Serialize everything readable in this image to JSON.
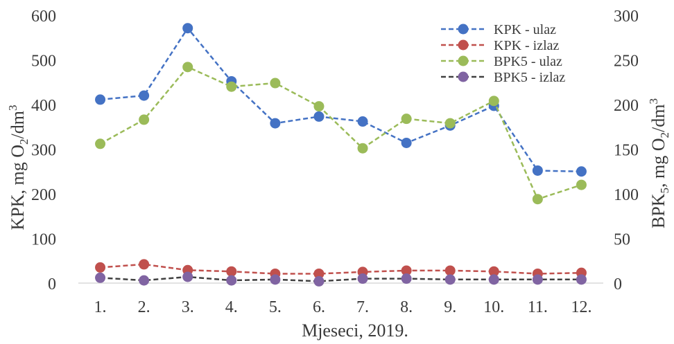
{
  "chart_data": {
    "type": "line",
    "xlabel": "Mjeseci, 2019.",
    "ylabel_left": "KPK, mg O",
    "ylabel_left_sub": "2",
    "ylabel_left_tail": "/dm",
    "ylabel_left_sup": "3",
    "ylabel_right": "BPK",
    "ylabel_right_sub5": "5",
    "ylabel_right_mid": ", mg O",
    "ylabel_right_sub2": "2",
    "ylabel_right_tail": "/dm",
    "ylabel_right_sup": "3",
    "categories": [
      "1.",
      "2.",
      "3.",
      "4.",
      "5.",
      "6.",
      "7.",
      "8.",
      "9.",
      "10.",
      "11.",
      "12."
    ],
    "ylim_left": [
      0,
      600
    ],
    "ylim_right": [
      0,
      300
    ],
    "yticks_left": [
      0,
      100,
      200,
      300,
      400,
      500,
      600
    ],
    "yticks_right": [
      0,
      50,
      100,
      150,
      200,
      250,
      300
    ],
    "grid": false,
    "legend_position": "top-right",
    "series": [
      {
        "name": "KPK - ulaz",
        "axis": "left",
        "color": "#4472C4",
        "values": [
          411,
          420,
          571,
          452,
          358,
          373,
          362,
          314,
          353,
          397,
          252,
          250
        ]
      },
      {
        "name": "KPK - izlaz",
        "axis": "left",
        "color": "#C0504D",
        "values": [
          35,
          42,
          29,
          26,
          21,
          21,
          25,
          28,
          28,
          26,
          21,
          23
        ]
      },
      {
        "name": "BPK5 - ulaz",
        "axis": "right",
        "color": "#9BBB59",
        "values": [
          156,
          183,
          242,
          220,
          224,
          198,
          151,
          184,
          179,
          204,
          94,
          110
        ]
      },
      {
        "name": "BPK5 - izlaz",
        "axis": "right",
        "color": "#8064A2",
        "line_color": "#404040",
        "values": [
          6,
          3,
          7,
          3,
          4,
          2,
          5,
          5,
          4,
          4,
          4,
          4
        ]
      }
    ]
  }
}
